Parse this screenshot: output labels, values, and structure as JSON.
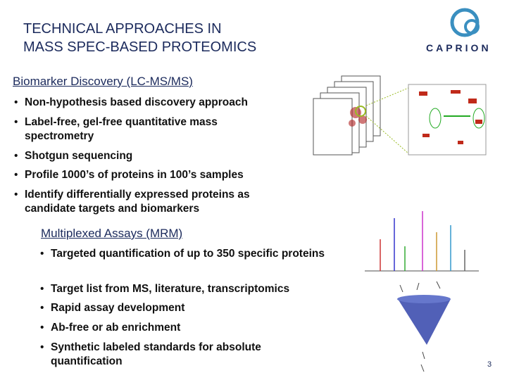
{
  "header": {
    "title_lines": [
      "TECHNICAL APPROACHES IN",
      "MASS SPEC-BASED PROTEOMICS"
    ],
    "logo": "CAPRION"
  },
  "sections": [
    {
      "heading": "Biomarker Discovery (LC-MS/MS)",
      "bullets": [
        "Non-hypothesis based discovery approach",
        "Label-free, gel-free quantitative mass spectrometry",
        "Shotgun sequencing",
        "Profile 1000’s of proteins in 100’s samples",
        "Identify differentially expressed proteins as candidate targets and biomarkers"
      ]
    },
    {
      "heading": "Multiplexed Assays (MRM)",
      "bullets": [
        "Targeted quantification of up to 350 specific proteins",
        "Target list from MS, literature, transcriptomics",
        "Rapid assay development",
        "Ab-free or ab enrichment",
        "Synthetic labeled standards for absolute quantification"
      ]
    }
  ],
  "page_number": "3"
}
